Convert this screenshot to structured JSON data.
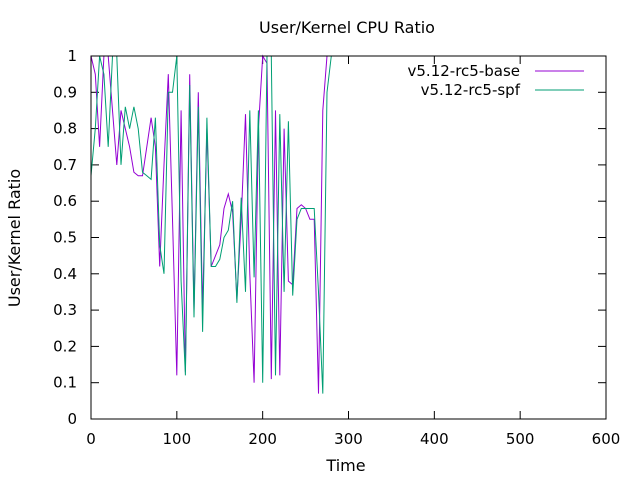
{
  "chart_data": {
    "type": "line",
    "title": "User/Kernel CPU Ratio",
    "xlabel": "Time",
    "ylabel": "User/Kernel Ratio",
    "xlim": [
      0,
      600
    ],
    "ylim": [
      0,
      1
    ],
    "xticks": [
      "0",
      "100",
      "200",
      "300",
      "400",
      "500",
      "600"
    ],
    "yticks": [
      "0",
      "0.1",
      "0.2",
      "0.3",
      "0.4",
      "0.5",
      "0.6",
      "0.7",
      "0.8",
      "0.9",
      "1"
    ],
    "grid": false,
    "legend_position": "top-right",
    "series": [
      {
        "name": "v5.12-rc5-base",
        "color": "#9400d3",
        "points": [
          [
            0,
            1.0
          ],
          [
            5,
            0.95
          ],
          [
            10,
            0.75
          ],
          [
            15,
            1.0
          ],
          [
            20,
            1.0
          ],
          [
            25,
            0.85
          ],
          [
            30,
            0.7
          ],
          [
            35,
            0.85
          ],
          [
            40,
            0.8
          ],
          [
            45,
            0.75
          ],
          [
            50,
            0.68
          ],
          [
            55,
            0.67
          ],
          [
            60,
            0.67
          ],
          [
            65,
            0.75
          ],
          [
            70,
            0.83
          ],
          [
            75,
            0.75
          ],
          [
            80,
            0.42
          ],
          [
            85,
            0.7
          ],
          [
            90,
            0.95
          ],
          [
            95,
            0.55
          ],
          [
            100,
            0.12
          ],
          [
            105,
            0.85
          ],
          [
            110,
            0.13
          ],
          [
            115,
            0.95
          ],
          [
            120,
            0.3
          ],
          [
            125,
            0.9
          ],
          [
            130,
            0.3
          ],
          [
            135,
            0.8
          ],
          [
            140,
            0.42
          ],
          [
            145,
            0.45
          ],
          [
            150,
            0.48
          ],
          [
            155,
            0.58
          ],
          [
            160,
            0.62
          ],
          [
            165,
            0.57
          ],
          [
            170,
            0.33
          ],
          [
            175,
            0.55
          ],
          [
            180,
            0.84
          ],
          [
            185,
            0.4
          ],
          [
            190,
            0.1
          ],
          [
            195,
            0.8
          ],
          [
            200,
            1.0
          ],
          [
            205,
            0.98
          ],
          [
            210,
            0.11
          ],
          [
            215,
            0.85
          ],
          [
            220,
            0.12
          ],
          [
            225,
            0.8
          ],
          [
            230,
            0.38
          ],
          [
            235,
            0.37
          ],
          [
            240,
            0.58
          ],
          [
            245,
            0.59
          ],
          [
            250,
            0.58
          ],
          [
            255,
            0.55
          ],
          [
            260,
            0.55
          ],
          [
            265,
            0.07
          ],
          [
            270,
            0.85
          ],
          [
            275,
            1.0
          ],
          [
            280,
            1.0
          ]
        ]
      },
      {
        "name": "v5.12-rc5-spf",
        "color": "#009e73",
        "points": [
          [
            0,
            0.67
          ],
          [
            5,
            0.8
          ],
          [
            10,
            1.0
          ],
          [
            15,
            0.95
          ],
          [
            20,
            0.75
          ],
          [
            25,
            1.0
          ],
          [
            30,
            1.0
          ],
          [
            35,
            0.7
          ],
          [
            40,
            0.86
          ],
          [
            45,
            0.8
          ],
          [
            50,
            0.86
          ],
          [
            55,
            0.8
          ],
          [
            60,
            0.68
          ],
          [
            65,
            0.67
          ],
          [
            70,
            0.66
          ],
          [
            75,
            0.83
          ],
          [
            80,
            0.48
          ],
          [
            85,
            0.4
          ],
          [
            90,
            0.9
          ],
          [
            95,
            0.9
          ],
          [
            100,
            1.0
          ],
          [
            105,
            0.38
          ],
          [
            110,
            0.12
          ],
          [
            115,
            0.92
          ],
          [
            120,
            0.28
          ],
          [
            125,
            0.86
          ],
          [
            130,
            0.24
          ],
          [
            135,
            0.83
          ],
          [
            140,
            0.42
          ],
          [
            145,
            0.42
          ],
          [
            150,
            0.44
          ],
          [
            155,
            0.5
          ],
          [
            160,
            0.52
          ],
          [
            165,
            0.6
          ],
          [
            170,
            0.32
          ],
          [
            175,
            0.61
          ],
          [
            180,
            0.35
          ],
          [
            185,
            0.85
          ],
          [
            190,
            0.39
          ],
          [
            195,
            0.85
          ],
          [
            200,
            0.1
          ],
          [
            205,
            1.0
          ],
          [
            210,
            1.0
          ],
          [
            215,
            0.12
          ],
          [
            220,
            0.84
          ],
          [
            225,
            0.35
          ],
          [
            230,
            0.82
          ],
          [
            235,
            0.34
          ],
          [
            240,
            0.55
          ],
          [
            245,
            0.58
          ],
          [
            250,
            0.58
          ],
          [
            255,
            0.58
          ],
          [
            260,
            0.58
          ],
          [
            265,
            0.35
          ],
          [
            270,
            0.07
          ],
          [
            275,
            0.9
          ],
          [
            280,
            1.0
          ]
        ]
      }
    ]
  }
}
